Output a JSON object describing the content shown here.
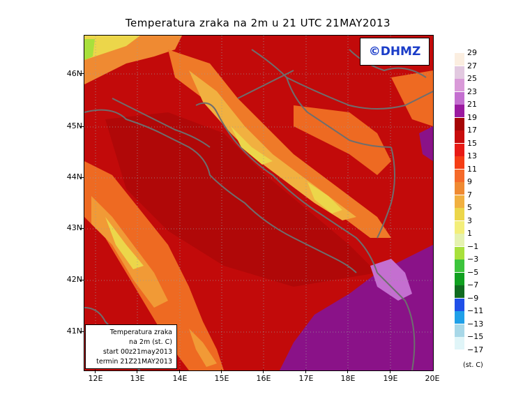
{
  "title": "Temperatura zraka na 2m u 21 UTC 21MAY2013",
  "logo_text": "©DHMZ",
  "info_box": {
    "line1": "Temperatura zraka",
    "line2": "na 2m (st. C)",
    "line3": "start 00z21may2013",
    "line4": "termin 21Z21MAY2013"
  },
  "lat_labels": [
    "46N",
    "45N",
    "44N",
    "43N",
    "42N",
    "41N"
  ],
  "lon_labels": [
    "12E",
    "13E",
    "14E",
    "15E",
    "16E",
    "17E",
    "18E",
    "19E",
    "20E"
  ],
  "legend": {
    "unit": "(st. C)",
    "boundaries": [
      "29",
      "27",
      "25",
      "23",
      "21",
      "19",
      "17",
      "15",
      "13",
      "11",
      "9",
      "7",
      "5",
      "3",
      "1",
      "−1",
      "−3",
      "−5",
      "−7",
      "−9",
      "−11",
      "−13",
      "−15",
      "−17"
    ],
    "colors": [
      "#fbeee0",
      "#e2c9e0",
      "#d99ad8",
      "#c46fd0",
      "#9b1aa0",
      "#a50505",
      "#c80c0c",
      "#e81a15",
      "#f53d14",
      "#f56a2a",
      "#ef8a32",
      "#f1b040",
      "#ecd64a",
      "#f3ee7a",
      "#e5f2b0",
      "#a8e03c",
      "#3cc43c",
      "#10a020",
      "#106a20",
      "#2050e8",
      "#20a0e8",
      "#a8d8e8",
      "#e0f5f8"
    ]
  },
  "colors": {
    "sea": "#b01010",
    "land_warm": "#c80808",
    "mountains": "#ef7020",
    "high_peaks": "#ecd64a",
    "balkan_purple": "#8a1288",
    "coastline": "#6e6e6e",
    "logo": "#1a3cc8"
  }
}
